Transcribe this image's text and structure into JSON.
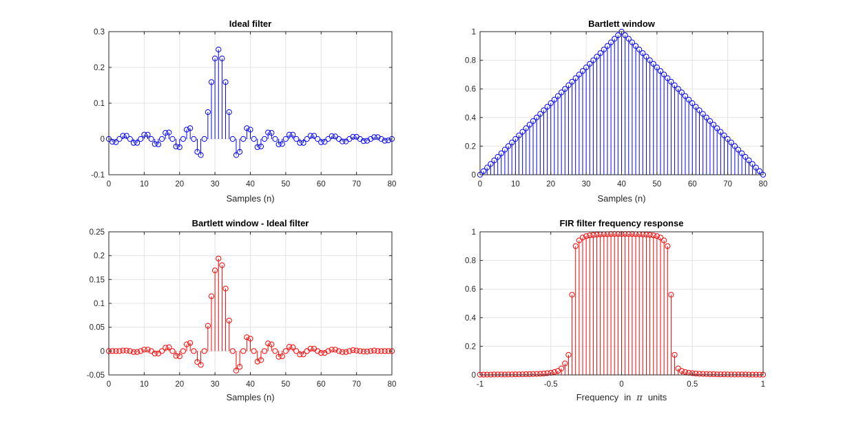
{
  "figure": {
    "background": "#ffffff"
  },
  "chart_data": [
    {
      "id": "ideal",
      "type": "stem",
      "title": "Ideal filter",
      "xlabel": "Samples (n)",
      "ylabel": "",
      "xlim": [
        0,
        80
      ],
      "ylim": [
        -0.1,
        0.3
      ],
      "xticks": [
        0,
        10,
        20,
        30,
        40,
        50,
        60,
        70,
        80
      ],
      "yticks": [
        -0.1,
        0,
        0.1,
        0.2,
        0.3
      ],
      "ytick_labels": [
        "-0.1",
        "0",
        "0.1",
        "0.2",
        "0.3"
      ],
      "grid": true,
      "color": "#0000ff",
      "x": [
        0,
        1,
        2,
        3,
        4,
        5,
        6,
        7,
        8,
        9,
        10,
        11,
        12,
        13,
        14,
        15,
        16,
        17,
        18,
        19,
        20,
        21,
        22,
        23,
        24,
        25,
        26,
        27,
        28,
        29,
        30,
        31,
        32,
        33,
        34,
        35,
        36,
        37,
        38,
        39,
        40,
        41,
        42,
        43,
        44,
        45,
        46,
        47,
        48,
        49,
        50,
        51,
        52,
        53,
        54,
        55,
        56,
        57,
        58,
        59,
        60,
        61,
        62,
        63,
        64,
        65,
        66,
        67,
        68,
        69,
        70,
        71,
        72,
        73,
        74,
        75,
        76,
        77,
        78,
        79,
        80
      ],
      "values": [
        0,
        -0.008,
        -0.009,
        0,
        0.009,
        0.009,
        0,
        -0.011,
        -0.011,
        0,
        0.012,
        0.012,
        0,
        -0.014,
        -0.015,
        0,
        0.017,
        0.018,
        0,
        -0.021,
        -0.023,
        0,
        0.026,
        0.03,
        0,
        -0.036,
        -0.045,
        0,
        0.075,
        0.159,
        0.225,
        0.25,
        0.225,
        0.159,
        0.075,
        0,
        -0.045,
        -0.036,
        0,
        0.03,
        0.026,
        0,
        -0.023,
        -0.021,
        0,
        0.018,
        0.017,
        0,
        -0.015,
        -0.014,
        0,
        0.012,
        0.012,
        0,
        -0.011,
        -0.011,
        0,
        0.009,
        0.009,
        0,
        -0.009,
        -0.008,
        0,
        0.008,
        0.007,
        0,
        -0.007,
        -0.007,
        0,
        0.006,
        0.006,
        0,
        -0.006,
        -0.005,
        0,
        0.005,
        0.005,
        0,
        -0.005,
        -0.004,
        0
      ]
    },
    {
      "id": "bartlett",
      "type": "stem",
      "title": "Bartlett window",
      "xlabel": "Samples (n)",
      "ylabel": "",
      "xlim": [
        0,
        80
      ],
      "ylim": [
        0,
        1
      ],
      "xticks": [
        0,
        10,
        20,
        30,
        40,
        50,
        60,
        70,
        80
      ],
      "yticks": [
        0,
        0.2,
        0.4,
        0.6,
        0.8,
        1
      ],
      "ytick_labels": [
        "0",
        "0.2",
        "0.4",
        "0.6",
        "0.8",
        "1"
      ],
      "grid": true,
      "color": "#0000ff",
      "x": [
        0,
        1,
        2,
        3,
        4,
        5,
        6,
        7,
        8,
        9,
        10,
        11,
        12,
        13,
        14,
        15,
        16,
        17,
        18,
        19,
        20,
        21,
        22,
        23,
        24,
        25,
        26,
        27,
        28,
        29,
        30,
        31,
        32,
        33,
        34,
        35,
        36,
        37,
        38,
        39,
        40,
        41,
        42,
        43,
        44,
        45,
        46,
        47,
        48,
        49,
        50,
        51,
        52,
        53,
        54,
        55,
        56,
        57,
        58,
        59,
        60,
        61,
        62,
        63,
        64,
        65,
        66,
        67,
        68,
        69,
        70,
        71,
        72,
        73,
        74,
        75,
        76,
        77,
        78,
        79,
        80
      ],
      "values": [
        0,
        0.025,
        0.05,
        0.075,
        0.1,
        0.125,
        0.15,
        0.175,
        0.2,
        0.225,
        0.25,
        0.275,
        0.3,
        0.325,
        0.35,
        0.375,
        0.4,
        0.425,
        0.45,
        0.475,
        0.5,
        0.525,
        0.55,
        0.575,
        0.6,
        0.625,
        0.65,
        0.675,
        0.7,
        0.725,
        0.75,
        0.775,
        0.8,
        0.825,
        0.85,
        0.875,
        0.9,
        0.925,
        0.95,
        0.975,
        1,
        0.975,
        0.95,
        0.925,
        0.9,
        0.875,
        0.85,
        0.825,
        0.8,
        0.775,
        0.75,
        0.725,
        0.7,
        0.675,
        0.65,
        0.625,
        0.6,
        0.575,
        0.55,
        0.525,
        0.5,
        0.475,
        0.45,
        0.425,
        0.4,
        0.375,
        0.35,
        0.325,
        0.3,
        0.275,
        0.25,
        0.225,
        0.2,
        0.175,
        0.15,
        0.125,
        0.1,
        0.075,
        0.05,
        0.025,
        0
      ]
    },
    {
      "id": "windowed",
      "type": "stem",
      "title": "Bartlett window - Ideal filter",
      "xlabel": "Samples (n)",
      "ylabel": "",
      "xlim": [
        0,
        80
      ],
      "ylim": [
        -0.05,
        0.25
      ],
      "xticks": [
        0,
        10,
        20,
        30,
        40,
        50,
        60,
        70,
        80
      ],
      "yticks": [
        -0.05,
        0,
        0.05,
        0.1,
        0.15,
        0.2,
        0.25
      ],
      "ytick_labels": [
        "-0.05",
        "0",
        "0.05",
        "0.1",
        "0.15",
        "0.2",
        "0.25"
      ],
      "grid": true,
      "color": "#ff0000",
      "x": [
        0,
        1,
        2,
        3,
        4,
        5,
        6,
        7,
        8,
        9,
        10,
        11,
        12,
        13,
        14,
        15,
        16,
        17,
        18,
        19,
        20,
        21,
        22,
        23,
        24,
        25,
        26,
        27,
        28,
        29,
        30,
        31,
        32,
        33,
        34,
        35,
        36,
        37,
        38,
        39,
        40,
        41,
        42,
        43,
        44,
        45,
        46,
        47,
        48,
        49,
        50,
        51,
        52,
        53,
        54,
        55,
        56,
        57,
        58,
        59,
        60,
        61,
        62,
        63,
        64,
        65,
        66,
        67,
        68,
        69,
        70,
        71,
        72,
        73,
        74,
        75,
        76,
        77,
        78,
        79,
        80
      ],
      "values": [
        0,
        0,
        0,
        0,
        0.001,
        0.001,
        0,
        -0.002,
        -0.002,
        0,
        0.003,
        0.003,
        0,
        -0.005,
        -0.005,
        0,
        0.007,
        0.008,
        0,
        -0.01,
        -0.011,
        0,
        0.014,
        0.017,
        0,
        -0.023,
        -0.029,
        0,
        0.053,
        0.115,
        0.169,
        0.194,
        0.18,
        0.131,
        0.064,
        0,
        -0.041,
        -0.033,
        0,
        0.029,
        0.026,
        0,
        -0.022,
        -0.019,
        0,
        0.016,
        0.014,
        0,
        -0.012,
        -0.011,
        0,
        0.009,
        0.008,
        0,
        -0.007,
        -0.007,
        0,
        0.005,
        0.005,
        0,
        -0.004,
        -0.004,
        0,
        0.003,
        0.003,
        0,
        -0.002,
        -0.002,
        0,
        0.002,
        0.001,
        0,
        -0.001,
        -0.001,
        0,
        0.001,
        0,
        0,
        0,
        0,
        0
      ]
    },
    {
      "id": "fir-response",
      "type": "stem",
      "title": "FIR filter frequency response",
      "xlabel_parts": [
        "Frequency",
        "in",
        "π",
        "units"
      ],
      "ylabel": "",
      "xlim": [
        -1,
        1
      ],
      "ylim": [
        0,
        1
      ],
      "xticks": [
        -1,
        -0.5,
        0,
        0.5,
        1
      ],
      "xtick_labels": [
        "-1",
        "-0.5",
        "0",
        "0.5",
        "1"
      ],
      "yticks": [
        0,
        0.2,
        0.4,
        0.6,
        0.8,
        1
      ],
      "ytick_labels": [
        "0",
        "0.2",
        "0.4",
        "0.6",
        "0.8",
        "1"
      ],
      "grid": true,
      "color": "#ff0000",
      "x": [
        -1,
        -0.975,
        -0.95,
        -0.925,
        -0.9,
        -0.875,
        -0.85,
        -0.825,
        -0.8,
        -0.775,
        -0.75,
        -0.725,
        -0.7,
        -0.675,
        -0.65,
        -0.625,
        -0.6,
        -0.575,
        -0.55,
        -0.525,
        -0.5,
        -0.475,
        -0.45,
        -0.425,
        -0.4,
        -0.375,
        -0.35,
        -0.325,
        -0.3,
        -0.275,
        -0.25,
        -0.225,
        -0.2,
        -0.175,
        -0.15,
        -0.125,
        -0.1,
        -0.075,
        -0.05,
        -0.025,
        0,
        0.025,
        0.05,
        0.075,
        0.1,
        0.125,
        0.15,
        0.175,
        0.2,
        0.225,
        0.25,
        0.275,
        0.3,
        0.325,
        0.35,
        0.375,
        0.4,
        0.425,
        0.45,
        0.475,
        0.5,
        0.525,
        0.55,
        0.575,
        0.6,
        0.625,
        0.65,
        0.675,
        0.7,
        0.725,
        0.75,
        0.775,
        0.8,
        0.825,
        0.85,
        0.875,
        0.9,
        0.925,
        0.95,
        0.975,
        1
      ],
      "values": [
        0.002,
        0.002,
        0.002,
        0.002,
        0.003,
        0.003,
        0.003,
        0.003,
        0.003,
        0.003,
        0.004,
        0.004,
        0.004,
        0.005,
        0.005,
        0.006,
        0.007,
        0.008,
        0.01,
        0.012,
        0.015,
        0.02,
        0.028,
        0.045,
        0.08,
        0.14,
        0.56,
        0.9,
        0.94,
        0.96,
        0.97,
        0.975,
        0.978,
        0.98,
        0.982,
        0.983,
        0.984,
        0.985,
        0.985,
        0.985,
        0.985,
        0.985,
        0.985,
        0.985,
        0.984,
        0.983,
        0.982,
        0.98,
        0.978,
        0.975,
        0.97,
        0.96,
        0.94,
        0.9,
        0.56,
        0.14,
        0.045,
        0.028,
        0.02,
        0.015,
        0.012,
        0.01,
        0.008,
        0.007,
        0.006,
        0.005,
        0.005,
        0.004,
        0.004,
        0.004,
        0.003,
        0.003,
        0.003,
        0.003,
        0.003,
        0.003,
        0.002,
        0.002,
        0.002,
        0.002,
        0.002
      ]
    }
  ]
}
